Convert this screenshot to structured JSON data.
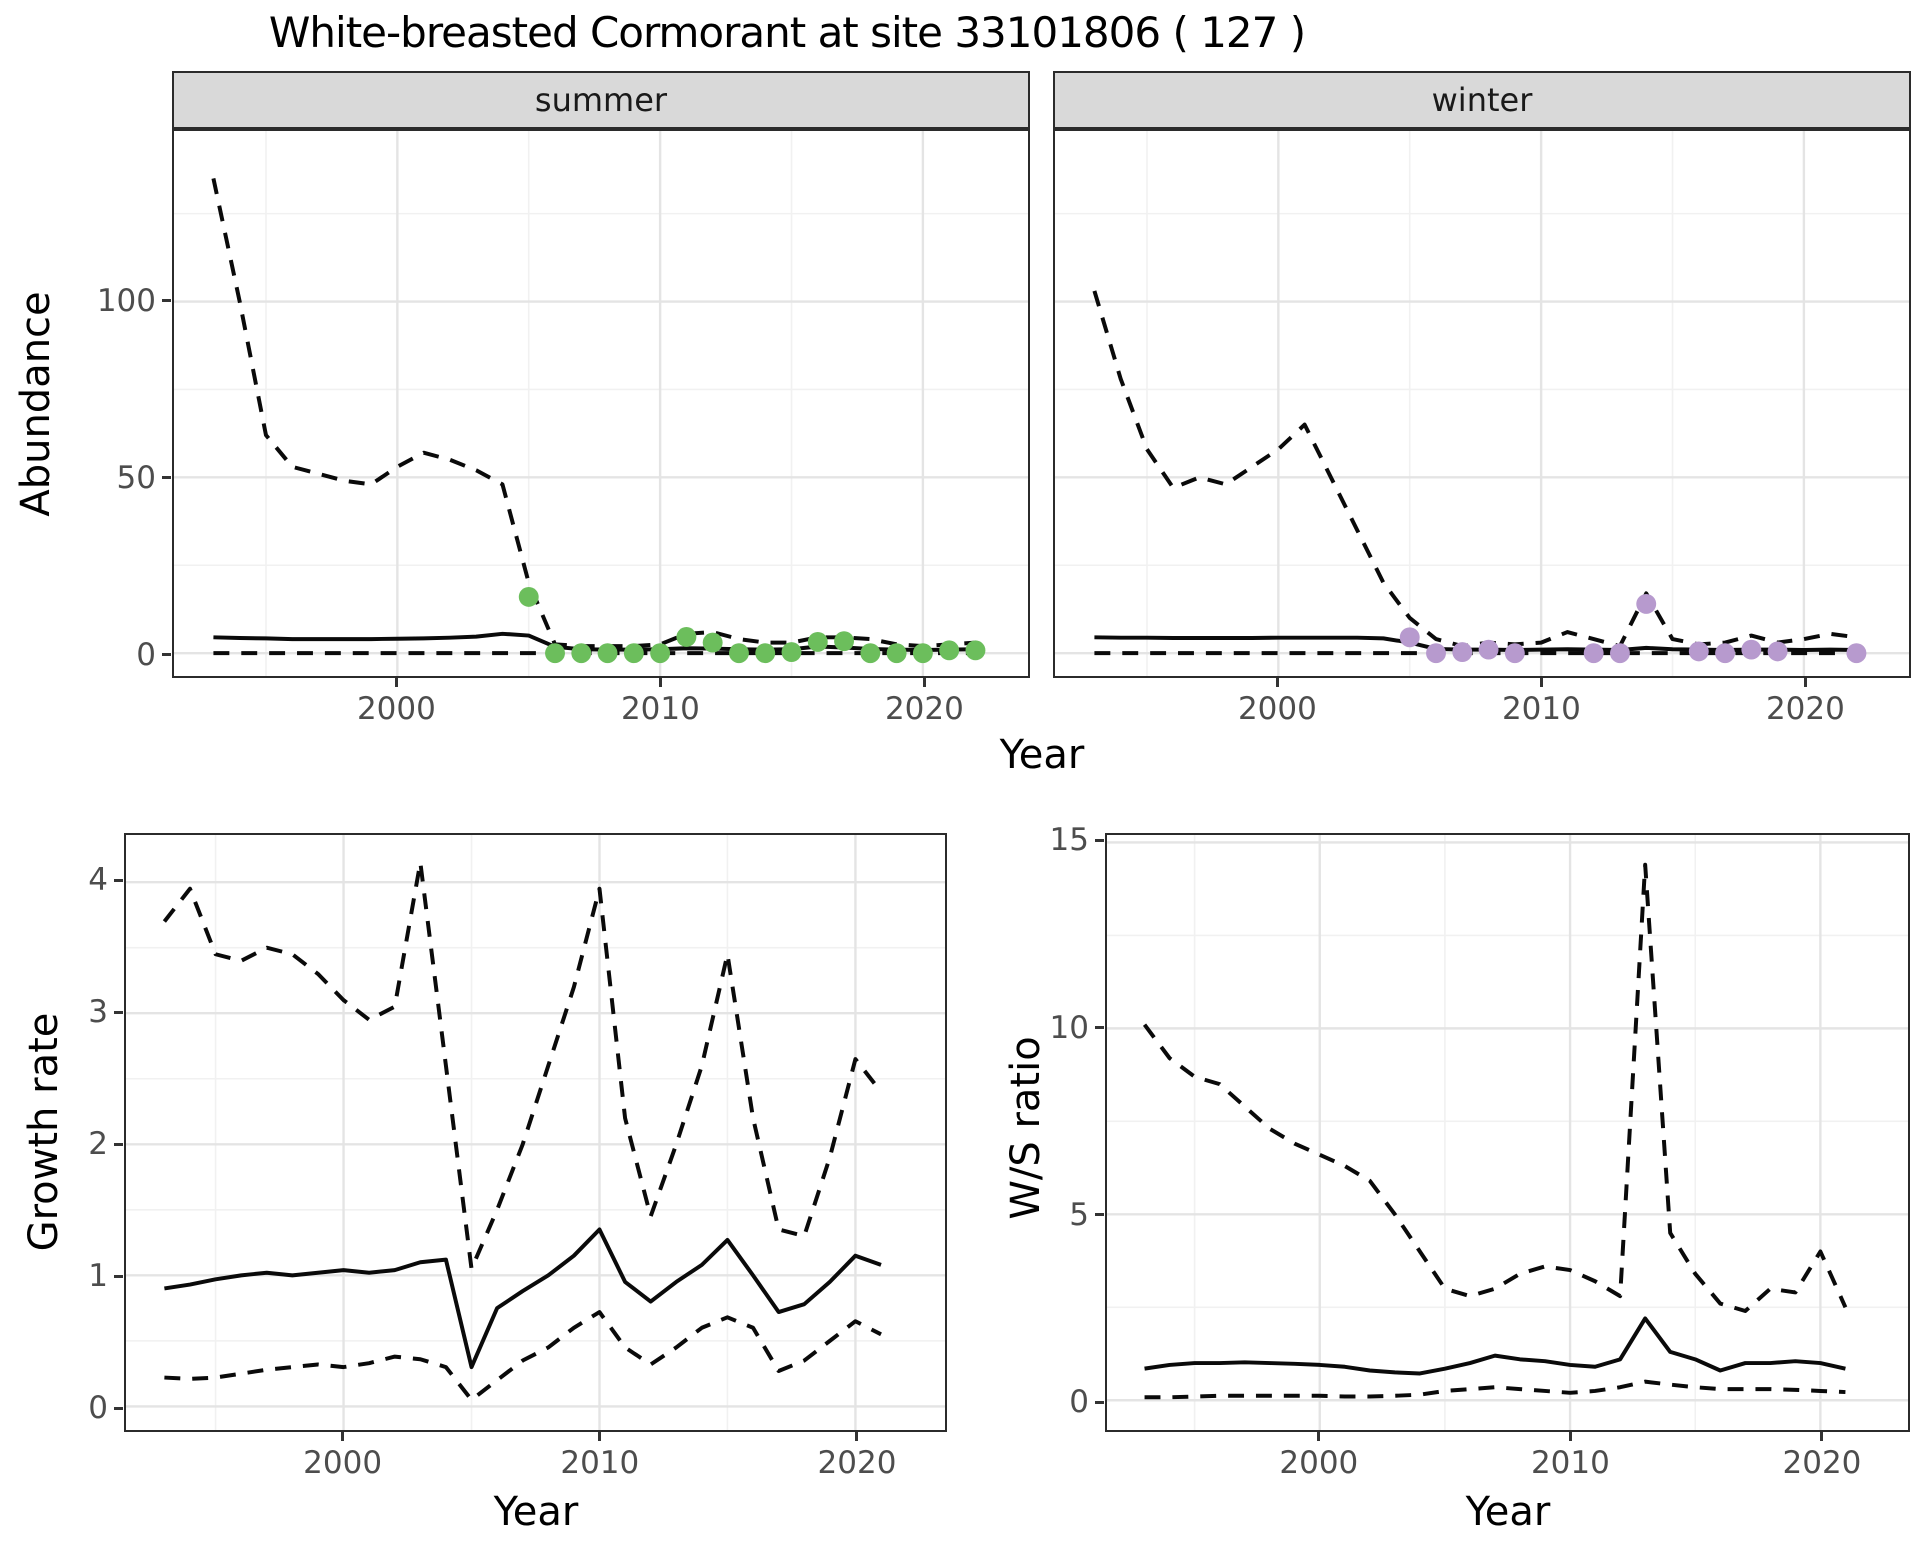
{
  "chart_data": {
    "type": "line",
    "title": "White-breasted Cormorant at site 33101806 ( 127 )",
    "legend": "none",
    "grid": "on",
    "panels": [
      {
        "id": "abundance-summer",
        "facet": "summer",
        "ylabel": "Abundance",
        "xlabel": "Year",
        "xlim": [
          1991.5,
          2024.0
        ],
        "ylim": [
          -6.5,
          148.5
        ],
        "xticks": [
          2000,
          2010,
          2020
        ],
        "xticks_minor": [
          1995,
          2005,
          2015
        ],
        "yticks": [
          0,
          50,
          100
        ],
        "yticks_minor": [
          25,
          75,
          125
        ],
        "x": [
          1993,
          1994,
          1995,
          1996,
          1997,
          1998,
          1999,
          2000,
          2001,
          2002,
          2003,
          2004,
          2005,
          2006,
          2007,
          2008,
          2009,
          2010,
          2011,
          2012,
          2013,
          2014,
          2015,
          2016,
          2017,
          2018,
          2019,
          2020,
          2021,
          2022
        ],
        "series": [
          {
            "name": "upper-ci",
            "style": "dashed",
            "values": [
              135,
              100,
              62,
              53,
              51,
              49,
              48,
              53,
              57,
              55,
              52,
              48,
              20,
              2.5,
              2,
              2,
              2,
              2.5,
              5.5,
              6,
              4,
              3,
              3,
              4.5,
              4.5,
              4,
              2.5,
              2,
              2.5,
              3
            ]
          },
          {
            "name": "median",
            "style": "solid",
            "values": [
              4.5,
              4.3,
              4.2,
              4.0,
              4.0,
              4.0,
              4.0,
              4.1,
              4.2,
              4.4,
              4.7,
              5.5,
              5.0,
              1.8,
              1.1,
              1.0,
              1.0,
              1.1,
              1.4,
              1.3,
              1.1,
              1.0,
              1.1,
              1.9,
              1.6,
              1.2,
              1.0,
              0.9,
              1.0,
              1.1
            ]
          },
          {
            "name": "lower-ci",
            "style": "dashed",
            "values": [
              0,
              0,
              0,
              0,
              0,
              0,
              0,
              0,
              0,
              0,
              0,
              0,
              0,
              0,
              0,
              0,
              0,
              0,
              0,
              0,
              0,
              0,
              0,
              0,
              0,
              0,
              0,
              0,
              0,
              0
            ]
          }
        ],
        "points": {
          "name": "observed-summer",
          "color": "#6CBE5C",
          "x": [
            2005,
            2006,
            2007,
            2008,
            2009,
            2010,
            2011,
            2012,
            2013,
            2014,
            2015,
            2016,
            2017,
            2018,
            2019,
            2020,
            2021,
            2022
          ],
          "values": [
            16,
            0,
            0,
            0,
            0,
            0,
            4.6,
            3,
            0,
            0,
            0.3,
            3.2,
            3.4,
            0,
            0,
            0,
            0.8,
            0.8
          ]
        }
      },
      {
        "id": "abundance-winter",
        "facet": "winter",
        "xlim": [
          1991.5,
          2024.0
        ],
        "ylim": [
          -6.5,
          148.5
        ],
        "xticks": [
          2000,
          2010,
          2020
        ],
        "xticks_minor": [
          1995,
          2005,
          2015
        ],
        "yticks": [
          0,
          50,
          100
        ],
        "yticks_minor": [
          25,
          75,
          125
        ],
        "x": [
          1993,
          1994,
          1995,
          1996,
          1997,
          1998,
          1999,
          2000,
          2001,
          2002,
          2003,
          2004,
          2005,
          2006,
          2007,
          2008,
          2009,
          2010,
          2011,
          2012,
          2013,
          2014,
          2015,
          2016,
          2017,
          2018,
          2019,
          2020,
          2021,
          2022
        ],
        "series": [
          {
            "name": "upper-ci",
            "style": "dashed",
            "values": [
              103,
              78,
              58,
              47,
              50,
              48,
              53,
              58,
              65,
              50,
              35,
              20,
              10,
              4,
              2,
              3,
              2.5,
              3,
              6,
              4,
              2,
              17,
              4,
              2.5,
              3,
              5,
              3,
              4,
              5.5,
              4.5
            ]
          },
          {
            "name": "median",
            "style": "solid",
            "values": [
              4.5,
              4.4,
              4.4,
              4.3,
              4.3,
              4.3,
              4.3,
              4.4,
              4.4,
              4.4,
              4.4,
              4.2,
              3.0,
              1.2,
              1.0,
              1.0,
              0.9,
              1.0,
              1.1,
              1.0,
              0.9,
              1.5,
              1.1,
              1.0,
              0.9,
              1.0,
              1.0,
              0.9,
              1.0,
              0.9
            ]
          },
          {
            "name": "lower-ci",
            "style": "dashed",
            "values": [
              0,
              0,
              0,
              0,
              0,
              0,
              0,
              0,
              0,
              0,
              0,
              0,
              0,
              0,
              0,
              0,
              0,
              0,
              0,
              0,
              0,
              0,
              0,
              0,
              0,
              0,
              0,
              0,
              0,
              0
            ]
          }
        ],
        "points": {
          "name": "observed-winter",
          "color": "#B79ACE",
          "x": [
            2005,
            2006,
            2007,
            2008,
            2009,
            2012,
            2013,
            2014,
            2016,
            2017,
            2018,
            2019,
            2022
          ],
          "values": [
            4.5,
            0,
            0.3,
            1,
            0,
            0,
            0,
            14,
            0.5,
            0,
            1,
            0.5,
            0
          ]
        }
      },
      {
        "id": "growth-rate",
        "ylabel": "Growth rate",
        "xlabel": "Year",
        "xlim": [
          1991.5,
          2023.5
        ],
        "ylim": [
          -0.18,
          4.36
        ],
        "xticks": [
          2000,
          2010,
          2020
        ],
        "xticks_minor": [
          1995,
          2005,
          2015
        ],
        "yticks": [
          0,
          1,
          2,
          3,
          4
        ],
        "yticks_minor": [
          0.5,
          1.5,
          2.5,
          3.5
        ],
        "x": [
          1993,
          1994,
          1995,
          1996,
          1997,
          1998,
          1999,
          2000,
          2001,
          2002,
          2003,
          2004,
          2005,
          2006,
          2007,
          2008,
          2009,
          2010,
          2011,
          2012,
          2013,
          2014,
          2015,
          2016,
          2017,
          2018,
          2019,
          2020,
          2021
        ],
        "series": [
          {
            "name": "upper-ci",
            "style": "dashed",
            "values": [
              3.7,
              3.95,
              3.45,
              3.4,
              3.5,
              3.45,
              3.3,
              3.1,
              2.95,
              3.05,
              4.15,
              2.6,
              1.05,
              1.5,
              2.0,
              2.6,
              3.2,
              3.95,
              2.2,
              1.45,
              2.0,
              2.6,
              3.45,
              2.2,
              1.35,
              1.3,
              1.9,
              2.65,
              2.4
            ]
          },
          {
            "name": "median",
            "style": "solid",
            "values": [
              0.9,
              0.93,
              0.97,
              1.0,
              1.02,
              1.0,
              1.02,
              1.04,
              1.02,
              1.04,
              1.1,
              1.12,
              0.3,
              0.75,
              0.88,
              1.0,
              1.15,
              1.35,
              0.95,
              0.8,
              0.95,
              1.08,
              1.27,
              1.0,
              0.72,
              0.78,
              0.95,
              1.15,
              1.08
            ]
          },
          {
            "name": "lower-ci",
            "style": "dashed",
            "values": [
              0.22,
              0.21,
              0.22,
              0.25,
              0.28,
              0.3,
              0.32,
              0.3,
              0.33,
              0.38,
              0.36,
              0.3,
              0.05,
              0.2,
              0.35,
              0.45,
              0.6,
              0.72,
              0.45,
              0.32,
              0.45,
              0.6,
              0.68,
              0.6,
              0.27,
              0.35,
              0.5,
              0.65,
              0.55
            ]
          }
        ]
      },
      {
        "id": "ws-ratio",
        "ylabel": "W/S ratio",
        "xlabel": "Year",
        "xlim": [
          1991.5,
          2023.5
        ],
        "ylim": [
          -0.8,
          15.2
        ],
        "xticks": [
          2000,
          2010,
          2020
        ],
        "xticks_minor": [
          1995,
          2005,
          2015
        ],
        "yticks": [
          0,
          5,
          10,
          15
        ],
        "yticks_minor": [
          2.5,
          7.5,
          12.5
        ],
        "x": [
          1993,
          1994,
          1995,
          1996,
          1997,
          1998,
          1999,
          2000,
          2001,
          2002,
          2003,
          2004,
          2005,
          2006,
          2007,
          2008,
          2009,
          2010,
          2011,
          2012,
          2013,
          2014,
          2015,
          2016,
          2017,
          2018,
          2019,
          2020,
          2021
        ],
        "series": [
          {
            "name": "upper-ci",
            "style": "dashed",
            "values": [
              10.1,
              9.2,
              8.7,
              8.5,
              7.9,
              7.3,
              6.9,
              6.6,
              6.3,
              5.9,
              5.0,
              4.0,
              3.0,
              2.8,
              3.0,
              3.4,
              3.6,
              3.5,
              3.2,
              2.8,
              14.4,
              4.5,
              3.4,
              2.6,
              2.4,
              3.0,
              2.9,
              4.0,
              2.5
            ]
          },
          {
            "name": "median",
            "style": "solid",
            "values": [
              0.85,
              0.95,
              1.0,
              1.0,
              1.02,
              1.0,
              0.98,
              0.95,
              0.9,
              0.8,
              0.75,
              0.72,
              0.85,
              1.0,
              1.2,
              1.1,
              1.05,
              0.95,
              0.9,
              1.1,
              2.2,
              1.3,
              1.1,
              0.8,
              1.0,
              1.0,
              1.05,
              1.0,
              0.85
            ]
          },
          {
            "name": "lower-ci",
            "style": "dashed",
            "values": [
              0.08,
              0.08,
              0.1,
              0.12,
              0.12,
              0.12,
              0.12,
              0.12,
              0.1,
              0.1,
              0.12,
              0.15,
              0.25,
              0.3,
              0.35,
              0.3,
              0.25,
              0.2,
              0.25,
              0.35,
              0.5,
              0.42,
              0.35,
              0.3,
              0.3,
              0.3,
              0.28,
              0.25,
              0.22
            ]
          }
        ]
      }
    ],
    "style": {
      "line_color": "#0a0a0a",
      "grid_major_color": "#e4e4e4",
      "grid_minor_color": "#f1f1f1",
      "strip_fill": "#d9d9d9",
      "tick_label_color": "#4d4d4d"
    }
  }
}
